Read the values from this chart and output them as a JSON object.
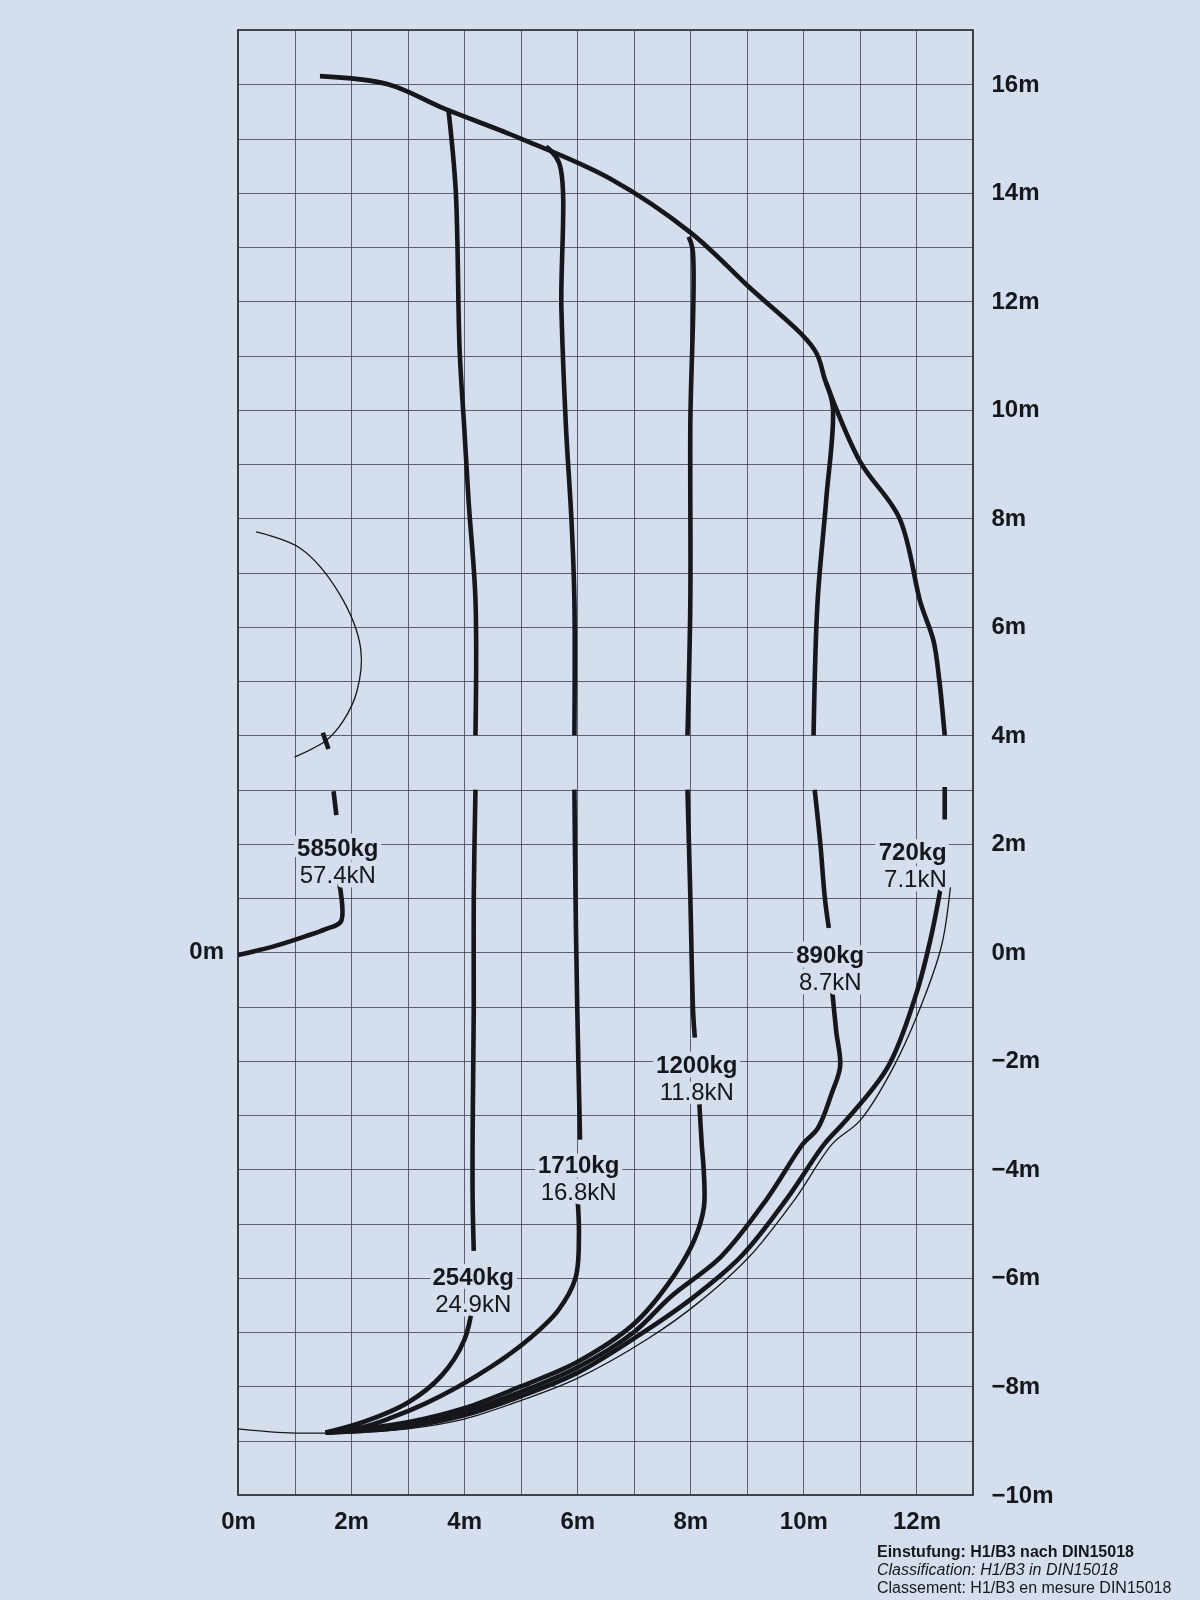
{
  "chart_data": {
    "type": "line",
    "xlim": [
      0,
      13
    ],
    "ylim": [
      -10,
      17
    ],
    "xticks": [
      {
        "value": 0,
        "label": "0m"
      },
      {
        "value": 1,
        "label": null
      },
      {
        "value": 2,
        "label": "2m"
      },
      {
        "value": 3,
        "label": null
      },
      {
        "value": 4,
        "label": "4m"
      },
      {
        "value": 5,
        "label": null
      },
      {
        "value": 6,
        "label": "6m"
      },
      {
        "value": 7,
        "label": null
      },
      {
        "value": 8,
        "label": "8m"
      },
      {
        "value": 9,
        "label": null
      },
      {
        "value": 10,
        "label": "10m"
      },
      {
        "value": 11,
        "label": null
      },
      {
        "value": 12,
        "label": "12m"
      },
      {
        "value": 13,
        "label": null
      }
    ],
    "yticks": [
      {
        "value": -10,
        "label": "−10m"
      },
      {
        "value": -9,
        "label": null
      },
      {
        "value": -8,
        "label": "−8m"
      },
      {
        "value": -7,
        "label": null
      },
      {
        "value": -6,
        "label": "−6m"
      },
      {
        "value": -5,
        "label": null
      },
      {
        "value": -4,
        "label": "−4m"
      },
      {
        "value": -3,
        "label": null
      },
      {
        "value": -2,
        "label": "−2m"
      },
      {
        "value": -1,
        "label": null
      },
      {
        "value": 0,
        "label": "0m"
      },
      {
        "value": 1,
        "label": null
      },
      {
        "value": 2,
        "label": "2m"
      },
      {
        "value": 3,
        "label": null
      },
      {
        "value": 4,
        "label": "4m"
      },
      {
        "value": 5,
        "label": null
      },
      {
        "value": 6,
        "label": "6m"
      },
      {
        "value": 7,
        "label": null
      },
      {
        "value": 8,
        "label": "8m"
      },
      {
        "value": 9,
        "label": null
      },
      {
        "value": 10,
        "label": "10m"
      },
      {
        "value": 11,
        "label": null
      },
      {
        "value": 12,
        "label": "12m"
      },
      {
        "value": 13,
        "label": null
      },
      {
        "value": 14,
        "label": "14m"
      },
      {
        "value": 15,
        "label": null
      },
      {
        "value": 16,
        "label": "16m"
      },
      {
        "value": 17,
        "label": null
      }
    ],
    "grid": true,
    "series": [
      {
        "name": "5850kg 57.4kN",
        "color": "#15171c",
        "x": [
          1.5,
          1.6,
          null,
          1.69,
          1.74,
          null,
          1.79,
          1.82,
          1.55,
          1.2,
          0.66,
          0
        ],
        "values": [
          4.05,
          3.75,
          null,
          2.97,
          2.53,
          null,
          1.28,
          0.57,
          0.43,
          0.3,
          0.12,
          -0.05
        ]
      },
      {
        "name": "2540kg 24.9kN",
        "color": "#15171c",
        "x": [
          3.72,
          3.85,
          3.92,
          4.0,
          4.08,
          4.2,
          4.2,
          null,
          4.2,
          4.17,
          4.17,
          4.15,
          4.15,
          4.17,
          null,
          4.15,
          4.0,
          3.6,
          3.0,
          2.23,
          1.55
        ],
        "values": [
          15.55,
          14.06,
          11.1,
          9.7,
          8.3,
          6.5,
          4.0,
          null,
          3.0,
          1.0,
          -1.0,
          -3.3,
          -4.57,
          -5.5,
          null,
          -6.5,
          -7.15,
          -7.8,
          -8.3,
          -8.65,
          -8.85
        ]
      },
      {
        "name": "1710kg 16.8kN",
        "color": "#15171c",
        "x": [
          5.45,
          5.68,
          5.72,
          5.8,
          5.9,
          5.95,
          5.95,
          null,
          5.95,
          5.97,
          6.0,
          6.05,
          null,
          6.0,
          6.03,
          5.97,
          5.66,
          5.06,
          4.5,
          3.9,
          3.3,
          2.7,
          2.2,
          1.55
        ],
        "values": [
          14.85,
          14.55,
          11.85,
          9.7,
          7.93,
          6.48,
          4.0,
          null,
          3.0,
          1.0,
          -1.0,
          -3.45,
          null,
          -4.44,
          -5.2,
          -6.0,
          -6.6,
          -7.2,
          -7.62,
          -8.0,
          -8.32,
          -8.58,
          -8.75,
          -8.85
        ]
      },
      {
        "name": "1200kg 11.8kN",
        "color": "#15171c",
        "x": [
          7.97,
          8.04,
          8.0,
          8.0,
          7.95,
          null,
          7.95,
          8.0,
          8.05,
          8.08,
          null,
          8.15,
          8.2,
          8.24,
          8.24,
          8.07,
          7.65,
          7.0,
          6.0,
          5.0,
          4.0,
          3.0,
          2.2,
          1.55
        ],
        "values": [
          13.19,
          12.96,
          9.7,
          6.45,
          4.0,
          null,
          3.0,
          1.04,
          -1.1,
          -1.57,
          null,
          -2.6,
          -3.5,
          -4.07,
          -4.7,
          -5.3,
          -6.05,
          -6.85,
          -7.55,
          -8.0,
          -8.4,
          -8.66,
          -8.78,
          -8.85
        ]
      },
      {
        "name": "890kg 8.7kN",
        "color": "#15171c",
        "x": [
          10.4,
          10.52,
          10.4,
          10.25,
          10.18,
          null,
          10.2,
          10.3,
          10.38,
          10.45,
          null,
          10.5,
          10.58,
          10.65,
          10.5,
          10.25,
          10.0,
          9.35,
          8.55,
          7.65,
          7.0,
          6.0,
          5.0,
          4.0,
          3.0,
          2.2,
          1.55
        ],
        "values": [
          10.5,
          10.05,
          8.3,
          6.45,
          4.0,
          null,
          3.0,
          2.0,
          1.0,
          0.45,
          null,
          -0.6,
          -1.45,
          -2.1,
          -2.6,
          -3.25,
          -3.52,
          -4.55,
          -5.6,
          -6.35,
          -7.0,
          -7.65,
          -8.1,
          -8.47,
          -8.7,
          -8.8,
          -8.85
        ]
      },
      {
        "name": "720kg 7.1kN",
        "color": "#15171c",
        "x": [
          1.45,
          2.65,
          3.65,
          5.0,
          6.6,
          8.0,
          9.0,
          10.2,
          10.4,
          11.0,
          11.7,
          12.07,
          12.3,
          12.4,
          12.5,
          null,
          12.5,
          12.5,
          null,
          12.43,
          12.25,
          12.0,
          11.5,
          10.75,
          10.38,
          9.7,
          8.9,
          8.0,
          7.1,
          6.0,
          5.0,
          4.0,
          3.0,
          2.2,
          1.55
        ],
        "values": [
          16.15,
          16.0,
          15.55,
          15.0,
          14.25,
          13.27,
          12.3,
          11.1,
          10.5,
          9.05,
          8.0,
          6.45,
          5.75,
          5.05,
          4.0,
          null,
          3.05,
          2.45,
          null,
          1.2,
          0.25,
          -0.75,
          -2.1,
          -3.1,
          -3.52,
          -4.55,
          -5.6,
          -6.4,
          -7.05,
          -7.75,
          -8.18,
          -8.53,
          -8.74,
          -8.82,
          -8.85
        ]
      },
      {
        "color": "#15171c",
        "x": [
          12.6,
          12.45,
          12.15,
          11.6,
          11.0,
          10.52,
          9.85,
          9.05,
          8.15,
          7.25,
          6.0,
          5.0,
          4.0,
          3.0,
          2.2,
          1.55,
          0.8,
          0
        ],
        "values": [
          1.2,
          0.15,
          -0.8,
          -2.1,
          -3.1,
          -3.52,
          -4.55,
          -5.6,
          -6.45,
          -7.12,
          -7.85,
          -8.26,
          -8.6,
          -8.78,
          -8.84,
          -8.86,
          -8.85,
          -8.78
        ]
      },
      {
        "color": "#15171c",
        "x": [
          0.32,
          1.1,
          1.8,
          2.17,
          2.1,
          1.85,
          1.55,
          1.0
        ],
        "values": [
          7.75,
          7.45,
          6.6,
          5.6,
          4.8,
          4.25,
          3.9,
          3.6
        ]
      }
    ],
    "annotations": [
      {
        "text": "0m",
        "x": 0,
        "y": 0
      },
      "Einstufung: H1/B3 nach DIN15018",
      "Classification: H1/B3 in DIN15018",
      "Classement: H1/B3 en mesure DIN15018"
    ]
  }
}
